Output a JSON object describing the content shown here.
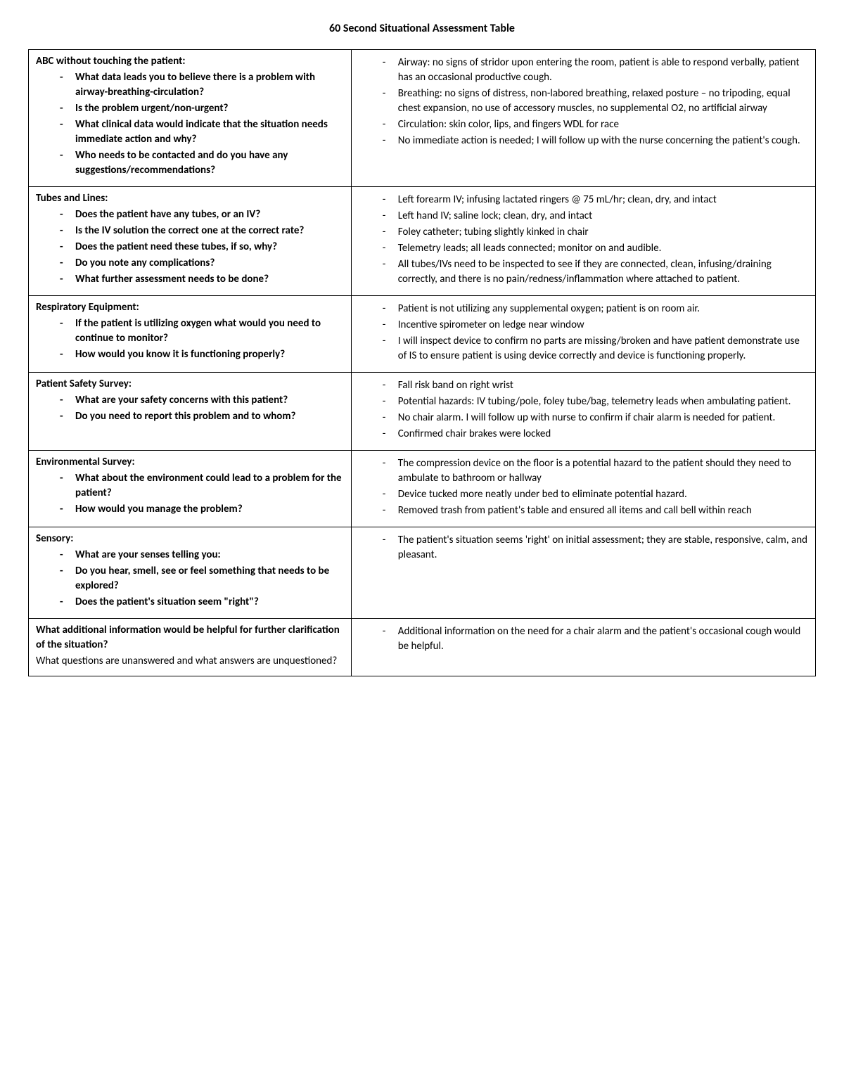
{
  "title": "60 Second Situational Assessment Table",
  "rows": [
    {
      "heading": "ABC without touching the patient:",
      "left": [
        "What data leads you to believe there is a problem with airway-breathing-circulation?",
        "Is the problem urgent/non-urgent?",
        "What clinical data would indicate that the situation needs immediate action and why?",
        "Who needs to be contacted and do you have any suggestions/recommendations?"
      ],
      "right": [
        "Airway: no signs of stridor upon entering the room, patient is able to respond verbally, patient has an occasional productive cough.",
        "Breathing: no signs of distress, non-labored breathing, relaxed posture – no tripoding, equal chest expansion, no use of accessory muscles, no supplemental O2, no artificial airway",
        "Circulation: skin color, lips, and fingers WDL for race",
        "No immediate action is needed; I will follow up with the nurse concerning the patient's cough."
      ]
    },
    {
      "heading": "Tubes and Lines:",
      "left": [
        "Does the patient have any tubes, or an IV?",
        "Is the IV solution the correct one at the correct rate?",
        "Does the patient need these tubes, if so, why?",
        "Do you note any complications?",
        "What further assessment needs to be done?"
      ],
      "right": [
        "Left forearm IV; infusing lactated ringers @ 75 mL/hr; clean, dry, and intact",
        "Left hand IV; saline lock; clean, dry, and intact",
        "Foley catheter; tubing slightly kinked in chair",
        "Telemetry leads; all leads connected; monitor on and audible.",
        "All tubes/IVs need to be inspected to see if they are connected, clean, infusing/draining correctly, and there is no pain/redness/inflammation where attached to patient."
      ]
    },
    {
      "heading": "Respiratory Equipment:",
      "left": [
        "If the patient is utilizing oxygen what would you need to continue to monitor?",
        "How would you know it is functioning properly?"
      ],
      "right": [
        "Patient is not utilizing any supplemental oxygen; patient is on room air.",
        "Incentive spirometer on ledge near window",
        "I will inspect device to confirm no parts are missing/broken and have patient demonstrate use of IS to ensure patient is using device correctly and device is functioning properly."
      ]
    },
    {
      "heading": "Patient Safety Survey:",
      "left": [
        "What are your safety concerns with this patient?",
        "Do you need to report this problem and to whom?"
      ],
      "right": [
        "Fall risk band on right wrist",
        "Potential hazards: IV tubing/pole, foley tube/bag, telemetry leads when ambulating patient.",
        "No chair alarm. I will follow up with nurse to confirm if chair alarm is needed for patient.",
        "Confirmed chair brakes were locked"
      ]
    },
    {
      "heading": "Environmental Survey:",
      "left": [
        "What about the environment could lead to a problem for the patient?",
        "How would you manage the problem?"
      ],
      "right": [
        "The compression device on the floor is a potential hazard to the patient should they need to ambulate to bathroom or hallway",
        "Device tucked more neatly under bed to eliminate potential hazard.",
        "Removed trash from patient's table and ensured all items and call bell within reach"
      ]
    },
    {
      "heading": "Sensory:",
      "left": [
        "What are your senses telling you:",
        "Do you hear, smell, see or feel something that needs to be explored?",
        "Does the patient's situation seem \"right\"?"
      ],
      "right": [
        "The patient's situation seems 'right' on initial assessment; they are stable, responsive, calm, and pleasant."
      ]
    },
    {
      "heading": "What additional information would be helpful for further clarification of the situation?",
      "subtext": "What questions are unanswered and what answers are unquestioned?",
      "left": [],
      "right": [
        "Additional information on the need for a chair alarm and the patient's occasional cough would be helpful."
      ]
    }
  ]
}
